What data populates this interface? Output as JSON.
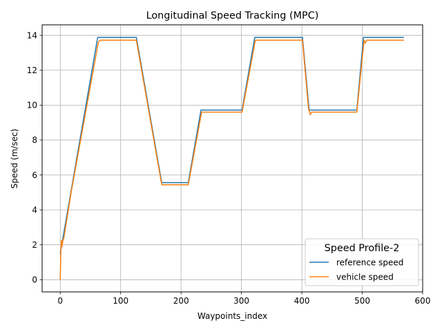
{
  "chart_data": {
    "type": "line",
    "title": "Longitudinal Speed Tracking (MPC)",
    "xlabel": "Waypoints_index",
    "ylabel": "Speed (m/sec)",
    "xlim": [
      -30,
      600
    ],
    "ylim": [
      -0.7,
      14.6
    ],
    "xticks": [
      0,
      100,
      200,
      300,
      400,
      500,
      600
    ],
    "yticks": [
      0,
      2,
      4,
      6,
      8,
      10,
      12,
      14
    ],
    "grid": true,
    "legend": {
      "title": "Speed Profile-2",
      "position": "lower right"
    },
    "series": [
      {
        "name": "reference speed",
        "color": "#1f77b4",
        "points": [
          [
            0,
            1.5
          ],
          [
            62,
            13.88
          ],
          [
            126,
            13.88
          ],
          [
            168,
            5.56
          ],
          [
            212,
            5.56
          ],
          [
            233,
            9.72
          ],
          [
            301,
            9.72
          ],
          [
            322,
            13.88
          ],
          [
            401,
            13.88
          ],
          [
            412,
            9.72
          ],
          [
            491,
            9.72
          ],
          [
            502,
            13.88
          ],
          [
            569,
            13.88
          ]
        ]
      },
      {
        "name": "vehicle speed",
        "color": "#ff7f0e",
        "points": [
          [
            0,
            0.0
          ],
          [
            1,
            1.6
          ],
          [
            2,
            2.25
          ],
          [
            3,
            1.9
          ],
          [
            4,
            2.2
          ],
          [
            6,
            2.4
          ],
          [
            18,
            5.0
          ],
          [
            63,
            13.6
          ],
          [
            66,
            13.72
          ],
          [
            126,
            13.72
          ],
          [
            168,
            5.44
          ],
          [
            212,
            5.44
          ],
          [
            234,
            9.6
          ],
          [
            301,
            9.6
          ],
          [
            323,
            13.72
          ],
          [
            401,
            13.72
          ],
          [
            411,
            9.8
          ],
          [
            414,
            9.45
          ],
          [
            416,
            9.6
          ],
          [
            491,
            9.6
          ],
          [
            503,
            13.72
          ],
          [
            505,
            13.55
          ],
          [
            507,
            13.72
          ],
          [
            569,
            13.72
          ]
        ]
      }
    ]
  }
}
